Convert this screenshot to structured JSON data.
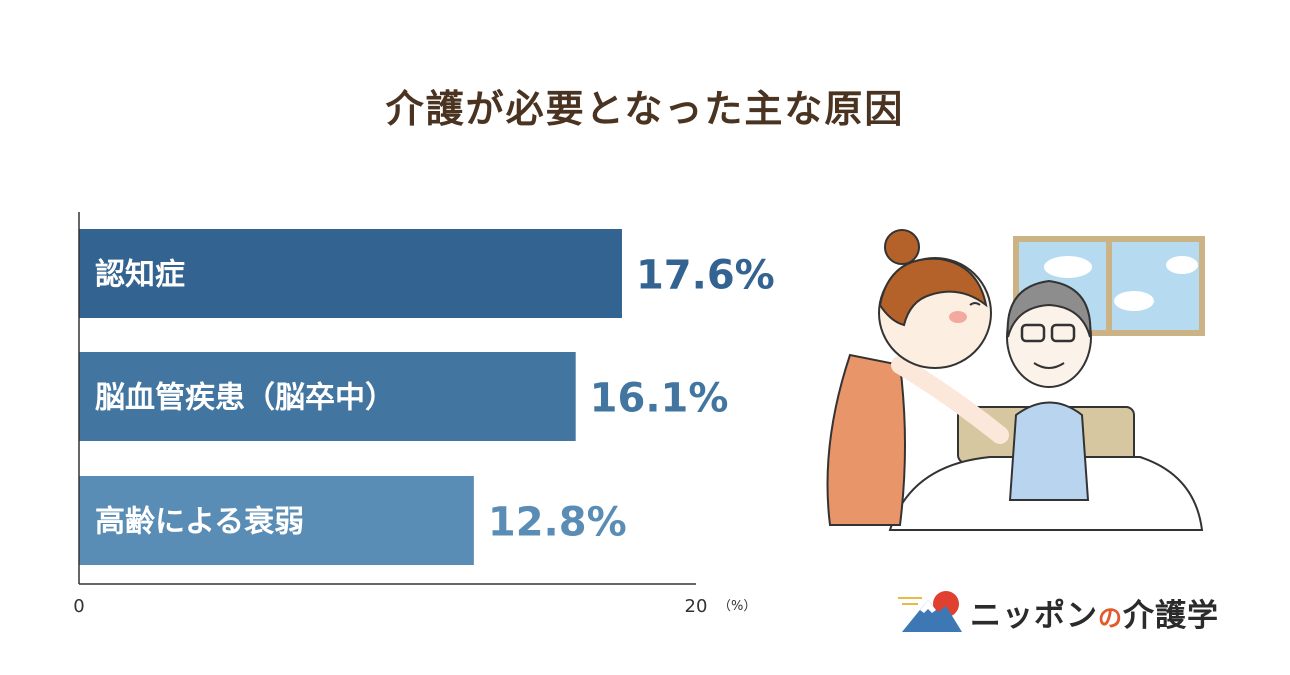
{
  "title": "介護が必要となった主な原因",
  "chart_data": {
    "type": "bar",
    "orientation": "horizontal",
    "title": "介護が必要となった主な原因",
    "categories": [
      "認知症",
      "脳血管疾患（脳卒中）",
      "高齢による衰弱"
    ],
    "values": [
      17.6,
      16.1,
      12.8
    ],
    "value_labels": [
      "17.6%",
      "16.1%",
      "12.8%"
    ],
    "xlim": [
      0,
      20
    ],
    "x_ticks": [
      "0",
      "20"
    ],
    "unit_label": "（%）",
    "grid": false,
    "colors": [
      "#336391",
      "#4276a0",
      "#5a8db5"
    ],
    "label_colors": [
      "#336391",
      "#4276a0",
      "#5a8db5"
    ]
  },
  "logo": {
    "brand": "ニッポン",
    "particle": "の",
    "suffix": "介護学"
  }
}
